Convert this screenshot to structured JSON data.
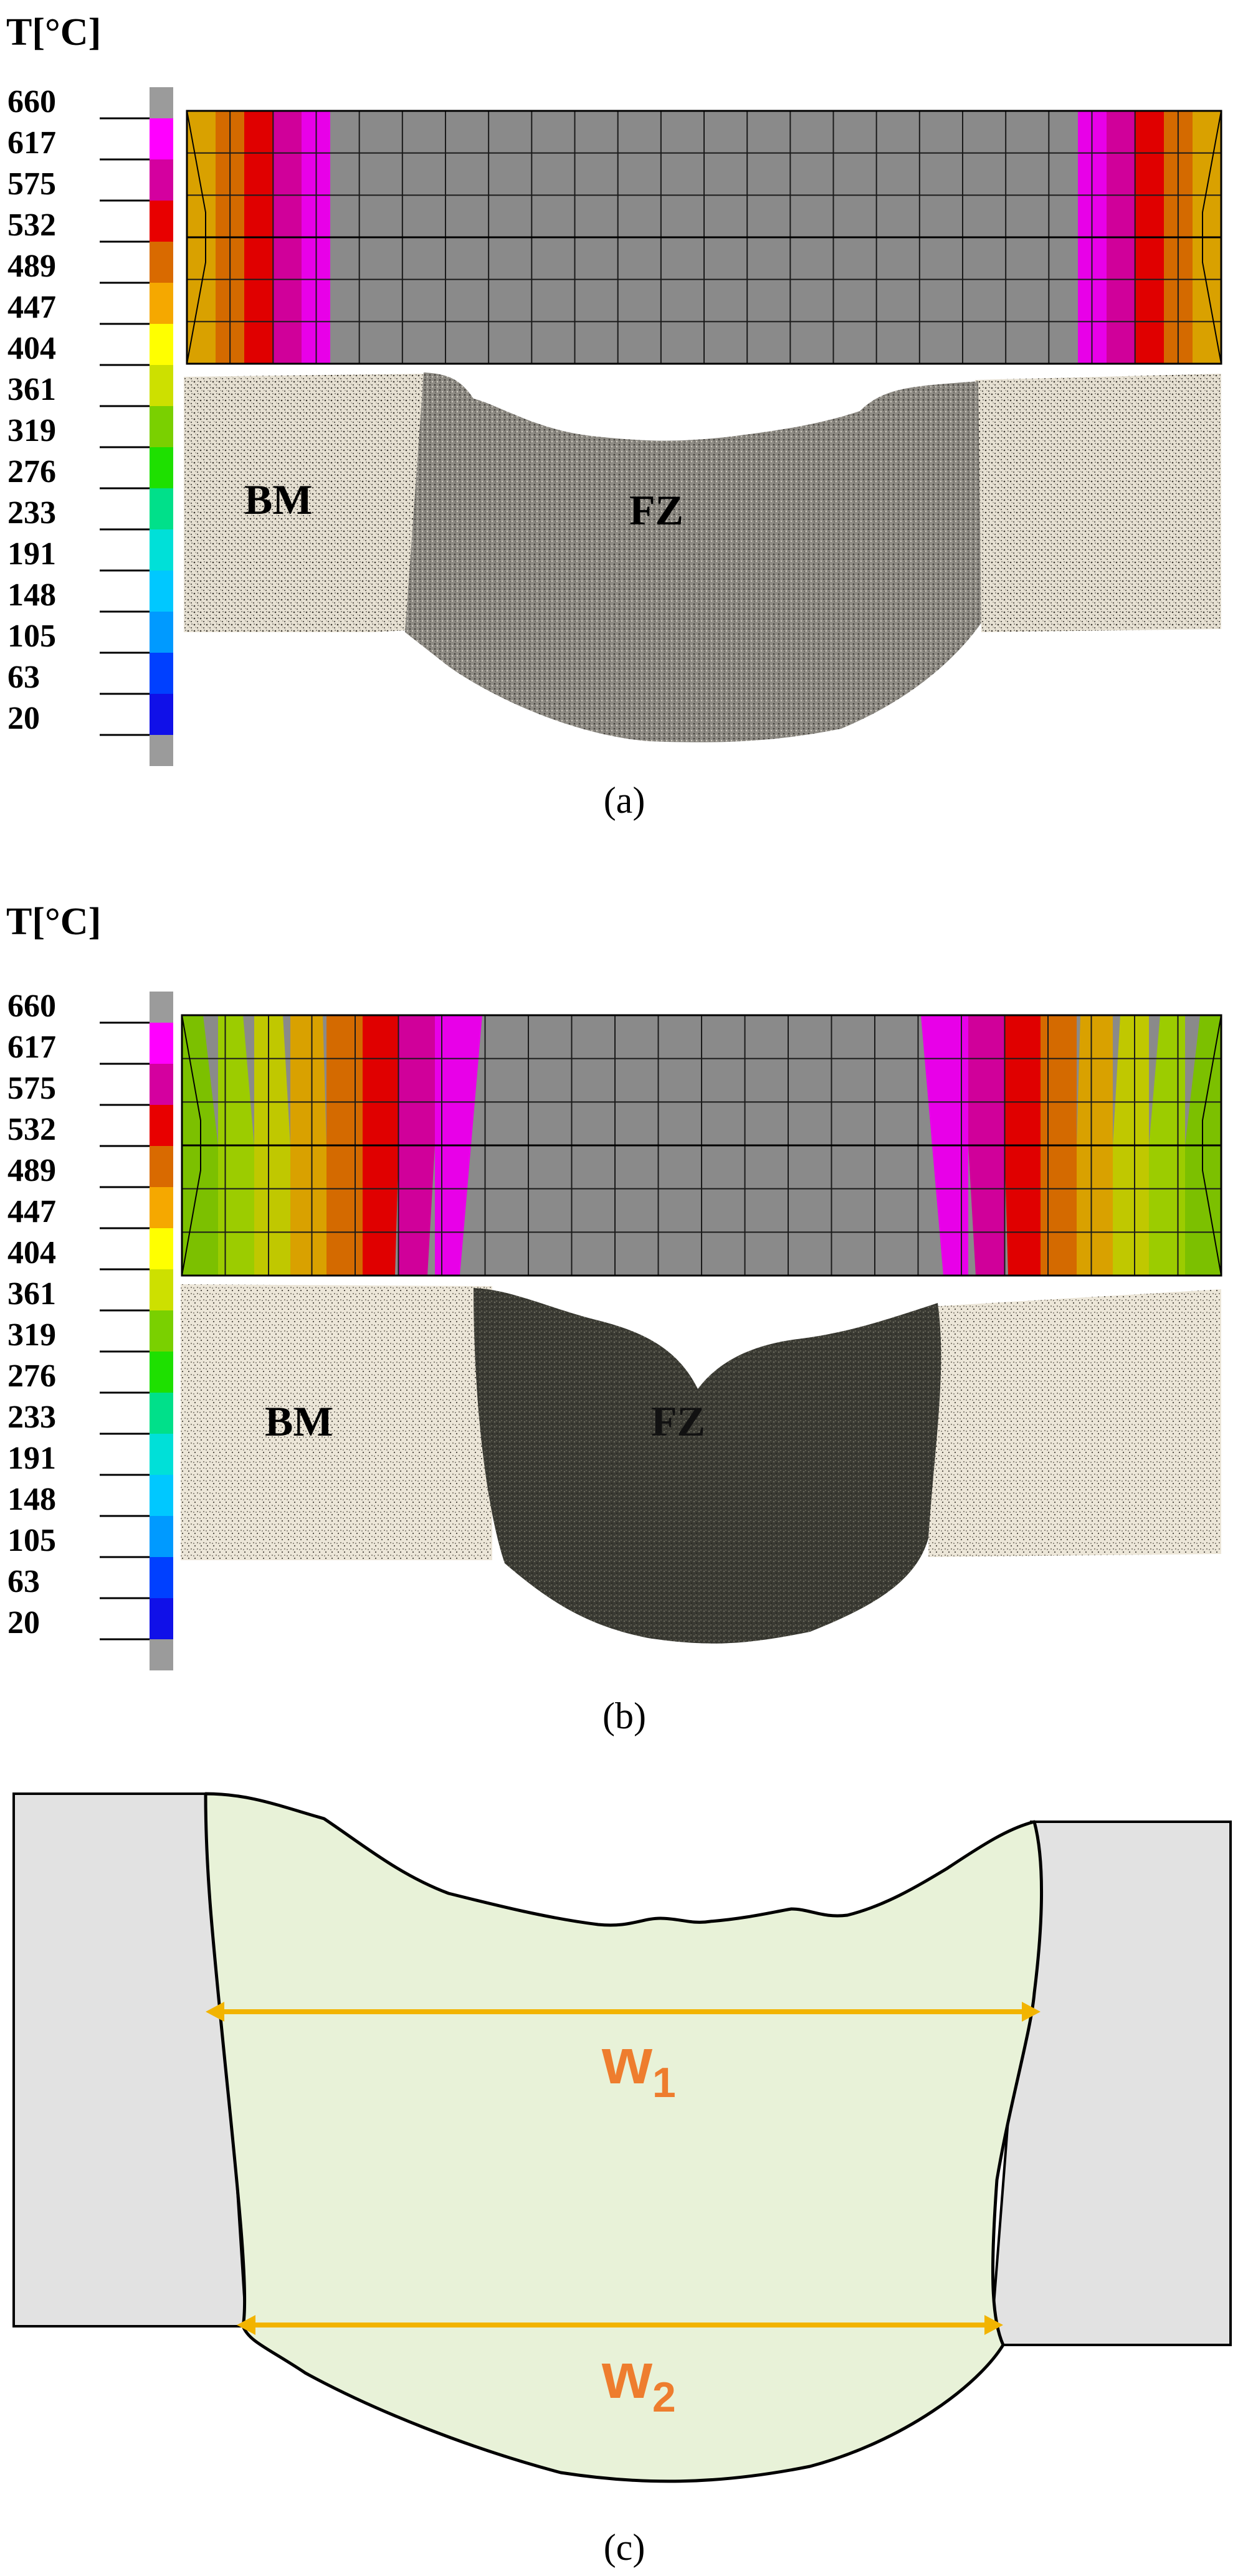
{
  "panels": [
    {
      "id": "a",
      "caption": "(a)",
      "legend_title": "T[°C]",
      "scale_labels": [
        "660",
        "617",
        "575",
        "532",
        "489",
        "447",
        "404",
        "361",
        "319",
        "276",
        "233",
        "191",
        "148",
        "105",
        "63",
        "20"
      ],
      "scale_colors": [
        "#9b9b9b",
        "#ff00ff",
        "#d4009f",
        "#e80000",
        "#d96a00",
        "#f5a800",
        "#ffff00",
        "#cde000",
        "#7ad000",
        "#1ee000",
        "#00e08a",
        "#00e0d8",
        "#00c8ff",
        "#009aff",
        "#0040ff",
        "#1010e8",
        "#9b9b9b"
      ],
      "zone_labels": {
        "base_metal": "BM",
        "fusion_zone": "FZ"
      },
      "mesh_band_colors": [
        "#d9a100",
        "#d46a00",
        "#e00000",
        "#d0009a",
        "#e800e8",
        "#8a8a8a"
      ]
    },
    {
      "id": "b",
      "caption": "(b)",
      "legend_title": "T[°C]",
      "scale_labels": [
        "660",
        "617",
        "575",
        "532",
        "489",
        "447",
        "404",
        "361",
        "319",
        "276",
        "233",
        "191",
        "148",
        "105",
        "63",
        "20"
      ],
      "scale_colors": [
        "#9b9b9b",
        "#ff00ff",
        "#d4009f",
        "#e80000",
        "#d96a00",
        "#f5a800",
        "#ffff00",
        "#cde000",
        "#7ad000",
        "#1ee000",
        "#00e08a",
        "#00e0d8",
        "#00c8ff",
        "#009aff",
        "#0040ff",
        "#1010e8",
        "#9b9b9b"
      ],
      "zone_labels": {
        "base_metal": "BM",
        "fusion_zone": "FZ"
      },
      "mesh_band_colors": [
        "#7cc000",
        "#9ccc00",
        "#c0c800",
        "#d9a100",
        "#d46a00",
        "#e00000",
        "#d0009a",
        "#e800e8",
        "#8a8a8a"
      ]
    },
    {
      "id": "c",
      "caption": "(c)",
      "width_labels": [
        {
          "letter": "w",
          "subscript": "1"
        },
        {
          "letter": "w",
          "subscript": "2"
        }
      ],
      "colors": {
        "fusion_zone": "#e8f2d8",
        "base_metal": "#e2e2e2",
        "outline": "#000000",
        "arrow": "#f2b400",
        "label": "#ee7d2e"
      }
    }
  ]
}
